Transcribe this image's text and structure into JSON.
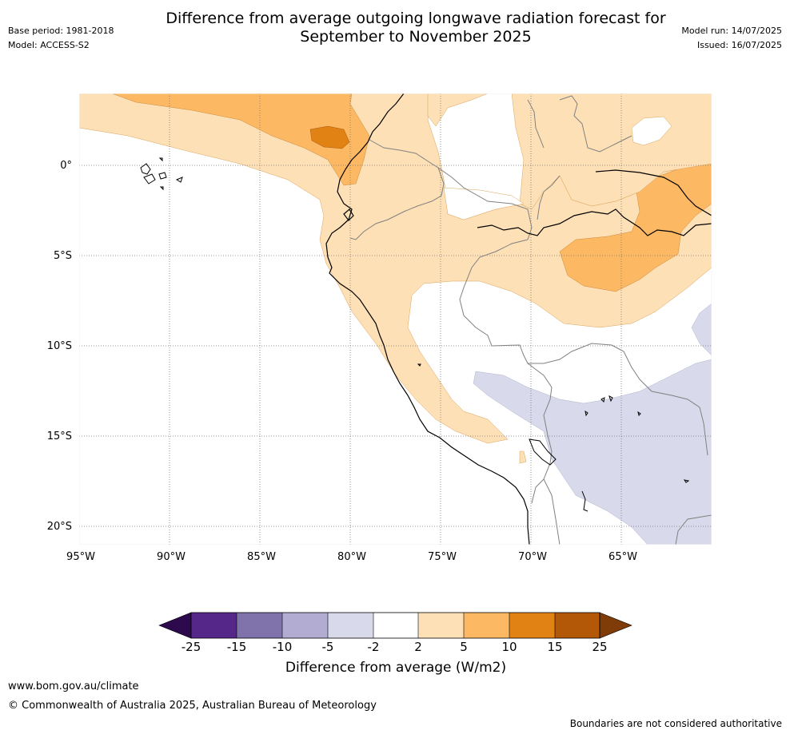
{
  "title_line1": "Difference from average outgoing longwave radiation forecast for",
  "title_line2": "September to November 2025",
  "base_period": "Base period: 1981-2018",
  "model": "Model: ACCESS-S2",
  "model_run": "Model run: 14/07/2025",
  "issued": "Issued: 16/07/2025",
  "lat_labels": [
    "0°",
    "5°S",
    "10°S",
    "15°S",
    "20°S"
  ],
  "lon_labels": [
    "95°W",
    "90°W",
    "85°W",
    "80°W",
    "75°W",
    "70°W",
    "65°W"
  ],
  "colorbar": {
    "ticks": [
      "-25",
      "-15",
      "-10",
      "-5",
      "-2",
      "2",
      "5",
      "10",
      "15",
      "25"
    ],
    "colors": [
      "#2d0a4e",
      "#542788",
      "#8073ac",
      "#b2abd2",
      "#d8daeb",
      "#ffffff",
      "#fee0b6",
      "#fdb863",
      "#e08214",
      "#b35806",
      "#7f3b08"
    ],
    "label": "Difference from average (W/m2)"
  },
  "site": "www.bom.gov.au/climate",
  "copyright": "© Commonwealth of Australia 2025, Australian Bureau of Meteorology",
  "disclaimer": "Boundaries are not considered authoritative"
}
